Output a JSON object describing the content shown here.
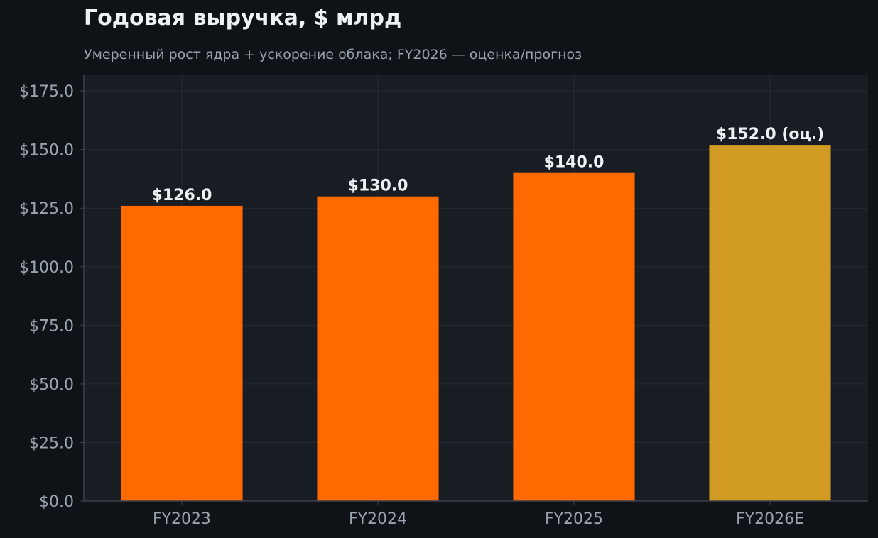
{
  "chart_data": {
    "type": "bar",
    "title": "Годовая выручка, $ млрд",
    "subtitle": "Умеренный рост ядра + ускорение облака; FY2026 — оценка/прогноз",
    "categories": [
      "FY2023",
      "FY2024",
      "FY2025",
      "FY2026E"
    ],
    "values": [
      126.0,
      130.0,
      140.0,
      152.0
    ],
    "value_labels": [
      "$126.0",
      "$130.0",
      "$140.0",
      "$152.0 (оц.)"
    ],
    "bar_colors": [
      "#ff6a00",
      "#ff6a00",
      "#ff6a00",
      "#d19a22"
    ],
    "ylim": [
      0,
      182
    ],
    "yticks": [
      0,
      25,
      50,
      75,
      100,
      125,
      150,
      175
    ],
    "ytick_labels": [
      "$0.0",
      "$25.0",
      "$50.0",
      "$75.0",
      "$100.0",
      "$125.0",
      "$150.0",
      "$175.0"
    ],
    "xlabel": "",
    "ylabel": "",
    "grid": true,
    "colors": {
      "background": "#0f1318",
      "plot_background": "#181c23",
      "grid": "#262b33",
      "axis": "#3a404a",
      "tick_label": "#9aa3ae",
      "value_label": "#eef1f4"
    }
  }
}
